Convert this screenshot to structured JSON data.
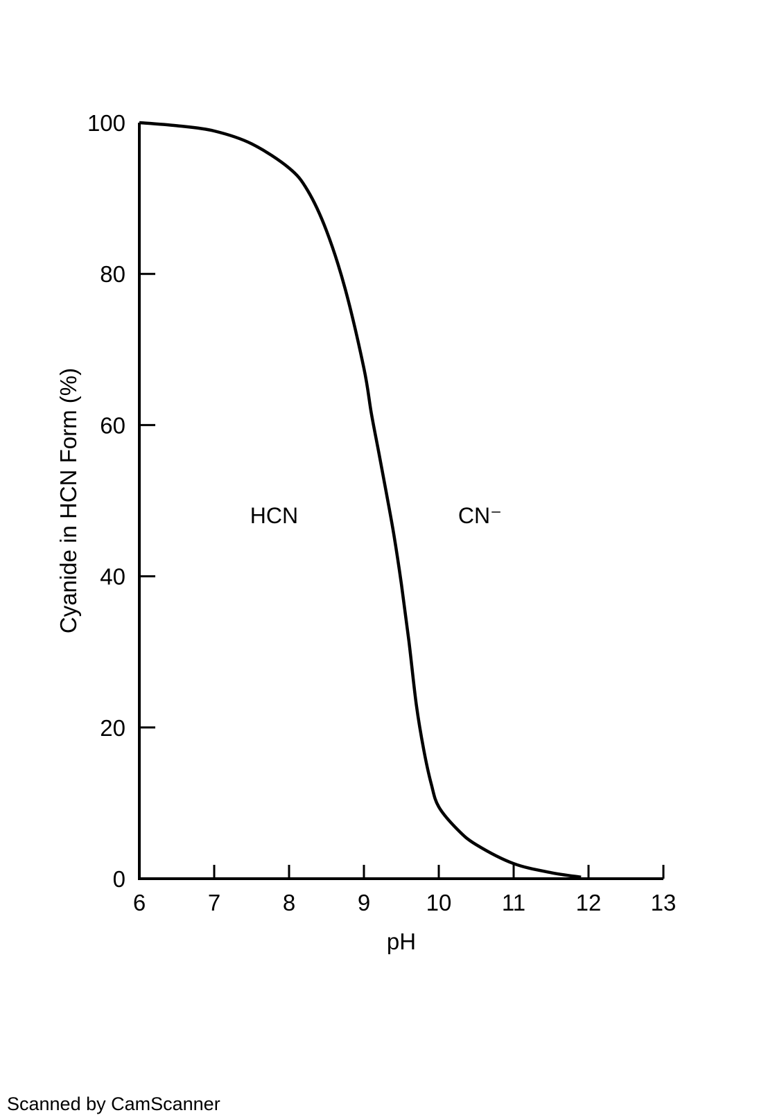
{
  "chart_data": {
    "type": "line",
    "xlabel": "pH",
    "ylabel": "Cyanide in HCN Form (%)",
    "xlim": [
      6,
      13
    ],
    "ylim": [
      0,
      100
    ],
    "x_ticks": [
      "6",
      "7",
      "8",
      "9",
      "10",
      "11",
      "12",
      "13"
    ],
    "y_ticks": [
      "0",
      "20",
      "40",
      "60",
      "80",
      "100"
    ],
    "grid": false,
    "series": [
      {
        "x": [
          6.0,
          6.5,
          7.0,
          7.5,
          8.0,
          8.25,
          8.5,
          8.75,
          9.0,
          9.1,
          9.2,
          9.3,
          9.4,
          9.5,
          9.6,
          9.7,
          9.8,
          9.9,
          10.0,
          10.25,
          10.5,
          11.0,
          11.5,
          11.9
        ],
        "y": [
          100,
          99.6,
          98.9,
          97.2,
          94.0,
          91.0,
          85.7,
          78.0,
          67.5,
          61.5,
          56.3,
          51.0,
          45.5,
          39.0,
          31.5,
          23.0,
          17.0,
          12.5,
          9.5,
          6.5,
          4.5,
          2.0,
          0.8,
          0.2
        ]
      }
    ],
    "annotations": [
      {
        "text": "HCN",
        "x": 7.8,
        "y": 47
      },
      {
        "text": "CN⁻",
        "x": 10.55,
        "y": 47
      }
    ]
  },
  "footer": "Scanned by CamScanner"
}
